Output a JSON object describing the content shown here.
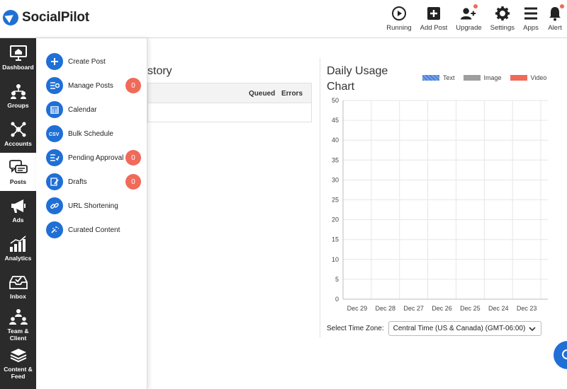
{
  "app": {
    "name": "SocialPilot"
  },
  "topbar": {
    "actions": [
      {
        "label": "Running",
        "icon": "play-icon"
      },
      {
        "label": "Add Post",
        "icon": "plus-square-icon"
      },
      {
        "label": "Upgrade",
        "icon": "user-plus-icon"
      },
      {
        "label": "Settings",
        "icon": "gear-icon"
      },
      {
        "label": "Apps",
        "icon": "menu-icon"
      },
      {
        "label": "Alert",
        "icon": "bell-icon"
      }
    ]
  },
  "rail": {
    "items": [
      {
        "label": "Dashboard",
        "icon": "monitor-icon"
      },
      {
        "label": "Groups",
        "icon": "groups-icon"
      },
      {
        "label": "Accounts",
        "icon": "network-icon"
      },
      {
        "label": "Posts",
        "icon": "chat-bubbles-icon",
        "active": true
      },
      {
        "label": "Ads",
        "icon": "megaphone-icon"
      },
      {
        "label": "Analytics",
        "icon": "bar-chart-icon"
      },
      {
        "label": "Inbox",
        "icon": "inbox-icon"
      },
      {
        "label": "Team & Client",
        "icon": "team-icon"
      },
      {
        "label": "Content & Feed",
        "icon": "layers-icon"
      }
    ]
  },
  "posts_menu": {
    "items": [
      {
        "label": "Create Post",
        "icon": "plus-icon"
      },
      {
        "label": "Manage Posts",
        "icon": "manage-posts-icon",
        "count": "0"
      },
      {
        "label": "Calendar",
        "icon": "calendar-icon"
      },
      {
        "label": "Bulk Schedule",
        "icon": "csv-icon"
      },
      {
        "label": "Pending Approval",
        "icon": "pending-approval-icon",
        "count": "0"
      },
      {
        "label": "Drafts",
        "icon": "drafts-icon",
        "count": "0"
      },
      {
        "label": "URL Shortening",
        "icon": "link-icon"
      },
      {
        "label": "Curated Content",
        "icon": "curated-content-icon"
      }
    ]
  },
  "history": {
    "title_visible": "story",
    "columns": [
      "Queued",
      "Errors"
    ]
  },
  "chart_data": {
    "type": "bar",
    "title": "Daily Usage Chart",
    "categories": [
      "Dec 29",
      "Dec 28",
      "Dec 27",
      "Dec 26",
      "Dec 25",
      "Dec 24",
      "Dec 23"
    ],
    "series": [
      {
        "name": "Text",
        "color": "#4a7fd9",
        "values": [
          0,
          0,
          0,
          0,
          0,
          0,
          0
        ]
      },
      {
        "name": "Image",
        "color": "#9e9e9e",
        "values": [
          0,
          0,
          0,
          0,
          0,
          0,
          0
        ]
      },
      {
        "name": "Video",
        "color": "#f06a5a",
        "values": [
          0,
          0,
          0,
          0,
          0,
          0,
          0
        ]
      }
    ],
    "ylim": [
      0,
      50
    ],
    "yticks": [
      0,
      5,
      10,
      15,
      20,
      25,
      30,
      35,
      40,
      45,
      50
    ],
    "grid": true,
    "legend": "top-right"
  },
  "timezone": {
    "label": "Select Time Zone:",
    "selected": "Central Time (US & Canada) (GMT-06:00)"
  },
  "colors": {
    "brand": "#1f6fd6",
    "badge": "#f06a5a",
    "rail": "#2b2b2b"
  }
}
